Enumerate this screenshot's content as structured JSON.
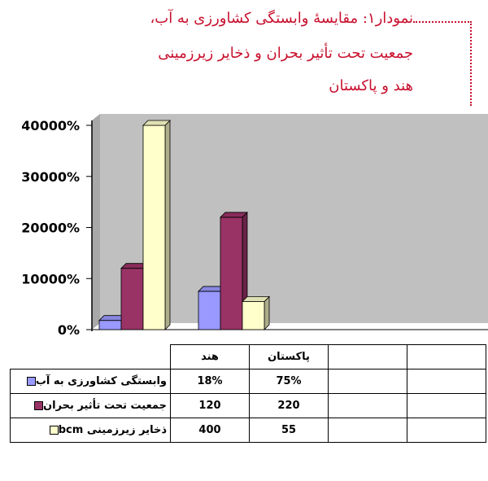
{
  "title": {
    "line1": "نمودار۱: مقایسهٔ وابستگی کشاورزی به آب،",
    "line2": "جمعیت تحت تأثیر بحران و ذخایر زیرزمینی",
    "line3": "هند و پاکستان"
  },
  "chart_data": {
    "type": "bar",
    "categories": [
      "هند",
      "پاکستان"
    ],
    "series": [
      {
        "name": "وابستگی کشاورزی به آب",
        "values": [
          18,
          75
        ],
        "color": "#9999ff"
      },
      {
        "name": "جمعیت تحت تأثیر بحران",
        "values": [
          120,
          220
        ],
        "color": "#993366"
      },
      {
        "name": "ذخایر زیرزمینی bcm",
        "values": [
          400,
          55
        ],
        "color": "#ffffcc"
      }
    ],
    "display_values": [
      [
        "18%",
        "75%"
      ],
      [
        "120",
        "220"
      ],
      [
        "400",
        "55"
      ]
    ],
    "yticks": [
      "0%",
      "10000%",
      "20000%",
      "30000%",
      "40000%"
    ],
    "ylim": [
      0,
      400
    ],
    "grid": false,
    "legend": "data-table"
  }
}
